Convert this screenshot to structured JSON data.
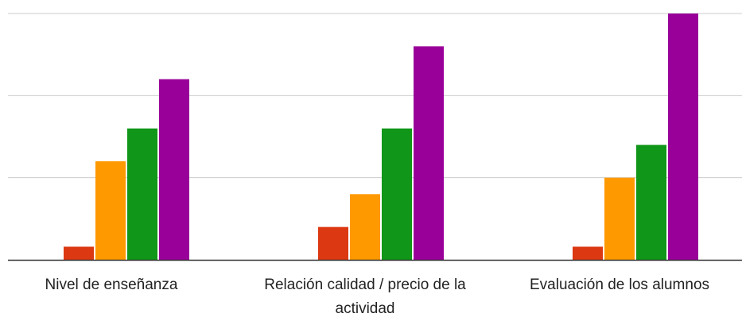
{
  "chart_data": {
    "type": "bar",
    "categories": [
      "Nivel de enseñanza",
      "Relación calidad / precio de la actividad",
      "Evaluación de los alumnos"
    ],
    "series": [
      {
        "color": "#dc3912",
        "values": [
          0.8,
          2.0,
          0.8
        ]
      },
      {
        "color": "#ff9900",
        "values": [
          6.0,
          4.0,
          5.0
        ]
      },
      {
        "color": "#109618",
        "values": [
          8.0,
          8.0,
          7.0
        ]
      },
      {
        "color": "#990099",
        "values": [
          11.0,
          13.0,
          15.0
        ]
      }
    ],
    "ylim": [
      0,
      15
    ],
    "grid": true,
    "gridlines": [
      0,
      5,
      10,
      15
    ],
    "legend": "none",
    "title": "",
    "xlabel": "",
    "ylabel": ""
  }
}
